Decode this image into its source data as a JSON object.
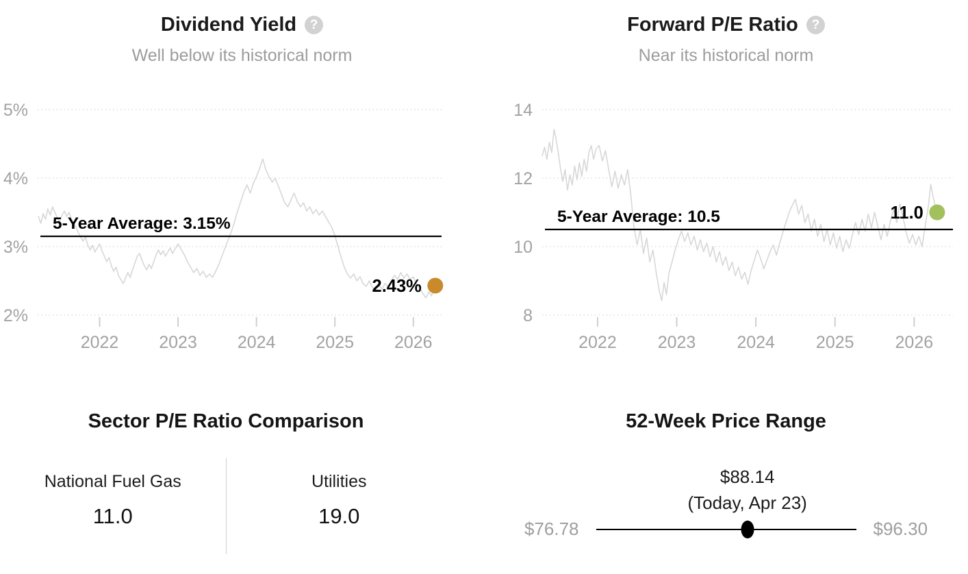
{
  "icons": {
    "help": "?"
  },
  "palette": {
    "series_line": "#d7d7d7",
    "grid_line": "#d5d5d5",
    "axis_text": "#a2a2a2",
    "tick_mark": "#cfcfcf",
    "average_line": "#000000",
    "dividend_dot": "#c98a2b",
    "pe_dot": "#a2c05c",
    "slider_dot": "#000000"
  },
  "chart_data": [
    {
      "id": "dividend_yield",
      "type": "line",
      "title": "Dividend Yield",
      "subtitle": "Well below its historical norm",
      "legend_position": "none",
      "grid": "dotted-horizontal",
      "x_range": [
        2021.21,
        2026.36
      ],
      "y_range": [
        2,
        5
      ],
      "x_ticks": [
        2022,
        2023,
        2024,
        2025,
        2026
      ],
      "y_ticks": [
        {
          "value": 5,
          "label": "5%"
        },
        {
          "value": 4,
          "label": "4%"
        },
        {
          "value": 3,
          "label": "3%"
        },
        {
          "value": 2,
          "label": "2%"
        }
      ],
      "average": {
        "value": 3.15,
        "label": "5-Year Average: 3.15%"
      },
      "current": {
        "value": 2.43,
        "label": "2.43%",
        "dot_color": "#c98a2b"
      },
      "series": [
        [
          2021.22,
          3.44
        ],
        [
          2021.25,
          3.34
        ],
        [
          2021.28,
          3.48
        ],
        [
          2021.31,
          3.4
        ],
        [
          2021.34,
          3.55
        ],
        [
          2021.37,
          3.46
        ],
        [
          2021.4,
          3.58
        ],
        [
          2021.43,
          3.5
        ],
        [
          2021.46,
          3.42
        ],
        [
          2021.49,
          3.36
        ],
        [
          2021.52,
          3.46
        ],
        [
          2021.55,
          3.52
        ],
        [
          2021.58,
          3.44
        ],
        [
          2021.61,
          3.5
        ],
        [
          2021.64,
          3.4
        ],
        [
          2021.67,
          3.34
        ],
        [
          2021.7,
          3.28
        ],
        [
          2021.73,
          3.2
        ],
        [
          2021.76,
          3.14
        ],
        [
          2021.79,
          3.08
        ],
        [
          2021.82,
          3.14
        ],
        [
          2021.85,
          3.02
        ],
        [
          2021.88,
          2.95
        ],
        [
          2021.91,
          3.02
        ],
        [
          2021.94,
          2.92
        ],
        [
          2021.97,
          2.98
        ],
        [
          2022.0,
          3.04
        ],
        [
          2022.03,
          2.94
        ],
        [
          2022.06,
          2.86
        ],
        [
          2022.09,
          2.78
        ],
        [
          2022.12,
          2.84
        ],
        [
          2022.15,
          2.72
        ],
        [
          2022.18,
          2.64
        ],
        [
          2022.21,
          2.7
        ],
        [
          2022.24,
          2.58
        ],
        [
          2022.27,
          2.52
        ],
        [
          2022.3,
          2.46
        ],
        [
          2022.33,
          2.54
        ],
        [
          2022.36,
          2.62
        ],
        [
          2022.39,
          2.55
        ],
        [
          2022.42,
          2.66
        ],
        [
          2022.45,
          2.76
        ],
        [
          2022.48,
          2.86
        ],
        [
          2022.51,
          2.9
        ],
        [
          2022.54,
          2.8
        ],
        [
          2022.57,
          2.72
        ],
        [
          2022.6,
          2.66
        ],
        [
          2022.63,
          2.74
        ],
        [
          2022.66,
          2.68
        ],
        [
          2022.69,
          2.78
        ],
        [
          2022.72,
          2.88
        ],
        [
          2022.75,
          2.95
        ],
        [
          2022.78,
          2.88
        ],
        [
          2022.81,
          2.94
        ],
        [
          2022.84,
          2.86
        ],
        [
          2022.87,
          2.92
        ],
        [
          2022.9,
          2.98
        ],
        [
          2022.93,
          2.9
        ],
        [
          2022.96,
          2.96
        ],
        [
          2023.0,
          3.04
        ],
        [
          2023.04,
          2.96
        ],
        [
          2023.08,
          2.88
        ],
        [
          2023.12,
          2.78
        ],
        [
          2023.16,
          2.7
        ],
        [
          2023.2,
          2.62
        ],
        [
          2023.24,
          2.68
        ],
        [
          2023.28,
          2.58
        ],
        [
          2023.32,
          2.64
        ],
        [
          2023.36,
          2.55
        ],
        [
          2023.4,
          2.6
        ],
        [
          2023.44,
          2.55
        ],
        [
          2023.48,
          2.64
        ],
        [
          2023.52,
          2.74
        ],
        [
          2023.56,
          2.86
        ],
        [
          2023.6,
          2.98
        ],
        [
          2023.64,
          3.1
        ],
        [
          2023.68,
          3.22
        ],
        [
          2023.72,
          3.36
        ],
        [
          2023.76,
          3.52
        ],
        [
          2023.8,
          3.66
        ],
        [
          2023.84,
          3.8
        ],
        [
          2023.88,
          3.9
        ],
        [
          2023.92,
          3.78
        ],
        [
          2023.96,
          3.92
        ],
        [
          2024.0,
          4.02
        ],
        [
          2024.04,
          4.14
        ],
        [
          2024.08,
          4.28
        ],
        [
          2024.12,
          4.12
        ],
        [
          2024.16,
          4.02
        ],
        [
          2024.2,
          3.94
        ],
        [
          2024.24,
          4.0
        ],
        [
          2024.28,
          3.88
        ],
        [
          2024.32,
          3.76
        ],
        [
          2024.36,
          3.64
        ],
        [
          2024.4,
          3.58
        ],
        [
          2024.44,
          3.68
        ],
        [
          2024.48,
          3.78
        ],
        [
          2024.52,
          3.66
        ],
        [
          2024.56,
          3.58
        ],
        [
          2024.6,
          3.64
        ],
        [
          2024.64,
          3.52
        ],
        [
          2024.68,
          3.58
        ],
        [
          2024.72,
          3.48
        ],
        [
          2024.76,
          3.54
        ],
        [
          2024.8,
          3.46
        ],
        [
          2024.84,
          3.52
        ],
        [
          2024.88,
          3.44
        ],
        [
          2024.92,
          3.36
        ],
        [
          2024.96,
          3.28
        ],
        [
          2025.0,
          3.16
        ],
        [
          2025.04,
          3.0
        ],
        [
          2025.08,
          2.84
        ],
        [
          2025.12,
          2.7
        ],
        [
          2025.16,
          2.6
        ],
        [
          2025.2,
          2.54
        ],
        [
          2025.24,
          2.6
        ],
        [
          2025.28,
          2.5
        ],
        [
          2025.32,
          2.56
        ],
        [
          2025.36,
          2.46
        ],
        [
          2025.4,
          2.42
        ],
        [
          2025.44,
          2.5
        ],
        [
          2025.48,
          2.4
        ],
        [
          2025.52,
          2.36
        ],
        [
          2025.56,
          2.44
        ],
        [
          2025.6,
          2.38
        ],
        [
          2025.64,
          2.46
        ],
        [
          2025.68,
          2.42
        ],
        [
          2025.72,
          2.5
        ],
        [
          2025.76,
          2.58
        ],
        [
          2025.8,
          2.52
        ],
        [
          2025.84,
          2.62
        ],
        [
          2025.88,
          2.54
        ],
        [
          2025.92,
          2.6
        ],
        [
          2025.96,
          2.52
        ],
        [
          2026.0,
          2.56
        ],
        [
          2026.04,
          2.46
        ],
        [
          2026.08,
          2.4
        ],
        [
          2026.12,
          2.32
        ],
        [
          2026.16,
          2.25
        ],
        [
          2026.2,
          2.34
        ],
        [
          2026.23,
          2.28
        ],
        [
          2026.26,
          2.36
        ],
        [
          2026.28,
          2.43
        ]
      ]
    },
    {
      "id": "forward_pe",
      "type": "line",
      "title": "Forward P/E Ratio",
      "subtitle": "Near its historical norm",
      "legend_position": "none",
      "grid": "dotted-horizontal",
      "x_range": [
        2021.3,
        2026.49
      ],
      "y_range": [
        8,
        14
      ],
      "x_ticks": [
        2022,
        2023,
        2024,
        2025,
        2026
      ],
      "y_ticks": [
        {
          "value": 14,
          "label": "14"
        },
        {
          "value": 12,
          "label": "12"
        },
        {
          "value": 10,
          "label": "10"
        },
        {
          "value": 8,
          "label": "8"
        }
      ],
      "average": {
        "value": 10.5,
        "label": "5-Year Average: 10.5"
      },
      "current": {
        "value": 11.0,
        "label": "11.0",
        "dot_color": "#a2c05c"
      },
      "series": [
        [
          2021.3,
          12.65
        ],
        [
          2021.33,
          12.9
        ],
        [
          2021.36,
          12.55
        ],
        [
          2021.39,
          13.05
        ],
        [
          2021.42,
          12.75
        ],
        [
          2021.45,
          13.42
        ],
        [
          2021.47,
          13.2
        ],
        [
          2021.5,
          12.8
        ],
        [
          2021.53,
          12.3
        ],
        [
          2021.56,
          11.9
        ],
        [
          2021.59,
          12.25
        ],
        [
          2021.62,
          11.65
        ],
        [
          2021.65,
          12.1
        ],
        [
          2021.68,
          11.8
        ],
        [
          2021.71,
          12.35
        ],
        [
          2021.74,
          11.95
        ],
        [
          2021.77,
          12.45
        ],
        [
          2021.8,
          12.05
        ],
        [
          2021.83,
          12.55
        ],
        [
          2021.86,
          12.2
        ],
        [
          2021.89,
          12.75
        ],
        [
          2021.92,
          12.95
        ],
        [
          2021.95,
          12.55
        ],
        [
          2021.98,
          12.85
        ],
        [
          2022.02,
          12.95
        ],
        [
          2022.06,
          12.5
        ],
        [
          2022.1,
          12.8
        ],
        [
          2022.14,
          12.25
        ],
        [
          2022.18,
          11.75
        ],
        [
          2022.22,
          12.2
        ],
        [
          2022.26,
          11.7
        ],
        [
          2022.3,
          12.1
        ],
        [
          2022.34,
          11.8
        ],
        [
          2022.38,
          12.25
        ],
        [
          2022.42,
          11.5
        ],
        [
          2022.46,
          10.55
        ],
        [
          2022.5,
          10.05
        ],
        [
          2022.54,
          10.5
        ],
        [
          2022.58,
          9.8
        ],
        [
          2022.62,
          10.25
        ],
        [
          2022.66,
          9.55
        ],
        [
          2022.7,
          9.9
        ],
        [
          2022.74,
          9.25
        ],
        [
          2022.78,
          8.7
        ],
        [
          2022.81,
          8.42
        ],
        [
          2022.84,
          8.95
        ],
        [
          2022.87,
          8.6
        ],
        [
          2022.9,
          9.2
        ],
        [
          2022.94,
          9.55
        ],
        [
          2022.98,
          9.9
        ],
        [
          2023.02,
          10.2
        ],
        [
          2023.06,
          10.45
        ],
        [
          2023.1,
          10.15
        ],
        [
          2023.14,
          10.4
        ],
        [
          2023.18,
          10.05
        ],
        [
          2023.22,
          10.3
        ],
        [
          2023.26,
          9.9
        ],
        [
          2023.3,
          10.2
        ],
        [
          2023.34,
          9.85
        ],
        [
          2023.38,
          10.1
        ],
        [
          2023.42,
          9.7
        ],
        [
          2023.46,
          10.0
        ],
        [
          2023.5,
          9.55
        ],
        [
          2023.54,
          9.85
        ],
        [
          2023.58,
          9.45
        ],
        [
          2023.62,
          9.7
        ],
        [
          2023.66,
          9.3
        ],
        [
          2023.7,
          9.55
        ],
        [
          2023.74,
          9.15
        ],
        [
          2023.78,
          9.4
        ],
        [
          2023.82,
          9.05
        ],
        [
          2023.86,
          9.25
        ],
        [
          2023.9,
          8.9
        ],
        [
          2023.94,
          9.3
        ],
        [
          2023.98,
          9.6
        ],
        [
          2024.02,
          9.9
        ],
        [
          2024.06,
          9.65
        ],
        [
          2024.1,
          9.35
        ],
        [
          2024.14,
          9.6
        ],
        [
          2024.18,
          9.85
        ],
        [
          2024.22,
          10.05
        ],
        [
          2024.26,
          9.75
        ],
        [
          2024.3,
          10.1
        ],
        [
          2024.34,
          10.4
        ],
        [
          2024.38,
          10.7
        ],
        [
          2024.42,
          11.0
        ],
        [
          2024.46,
          11.2
        ],
        [
          2024.5,
          11.38
        ],
        [
          2024.54,
          10.95
        ],
        [
          2024.58,
          11.2
        ],
        [
          2024.62,
          10.7
        ],
        [
          2024.66,
          10.95
        ],
        [
          2024.7,
          10.45
        ],
        [
          2024.74,
          10.8
        ],
        [
          2024.78,
          10.3
        ],
        [
          2024.82,
          10.65
        ],
        [
          2024.86,
          10.15
        ],
        [
          2024.9,
          10.5
        ],
        [
          2024.94,
          10.05
        ],
        [
          2024.98,
          10.4
        ],
        [
          2025.02,
          9.95
        ],
        [
          2025.06,
          10.3
        ],
        [
          2025.1,
          9.85
        ],
        [
          2025.14,
          10.2
        ],
        [
          2025.18,
          9.95
        ],
        [
          2025.22,
          10.35
        ],
        [
          2025.26,
          10.7
        ],
        [
          2025.3,
          10.35
        ],
        [
          2025.34,
          10.8
        ],
        [
          2025.38,
          10.45
        ],
        [
          2025.42,
          10.95
        ],
        [
          2025.46,
          10.55
        ],
        [
          2025.5,
          11.0
        ],
        [
          2025.54,
          10.6
        ],
        [
          2025.58,
          10.2
        ],
        [
          2025.62,
          10.65
        ],
        [
          2025.66,
          10.3
        ],
        [
          2025.7,
          10.75
        ],
        [
          2025.74,
          11.1
        ],
        [
          2025.78,
          10.7
        ],
        [
          2025.82,
          11.25
        ],
        [
          2025.86,
          10.85
        ],
        [
          2025.9,
          10.4
        ],
        [
          2025.94,
          10.1
        ],
        [
          2025.98,
          10.35
        ],
        [
          2026.02,
          10.05
        ],
        [
          2026.06,
          10.3
        ],
        [
          2026.1,
          10.0
        ],
        [
          2026.14,
          10.6
        ],
        [
          2026.18,
          11.2
        ],
        [
          2026.21,
          11.82
        ],
        [
          2026.24,
          11.45
        ],
        [
          2026.27,
          11.15
        ],
        [
          2026.29,
          11.0
        ]
      ]
    }
  ],
  "sector_comparison": {
    "title": "Sector P/E Ratio Comparison",
    "items": [
      {
        "name": "National Fuel Gas",
        "value": "11.0"
      },
      {
        "name": "Utilities",
        "value": "19.0"
      }
    ]
  },
  "price_range": {
    "title": "52-Week Price Range",
    "current": "$88.14",
    "current_note": "(Today, Apr 23)",
    "low": "$76.78",
    "high": "$96.30",
    "position_pct": 58.2
  }
}
